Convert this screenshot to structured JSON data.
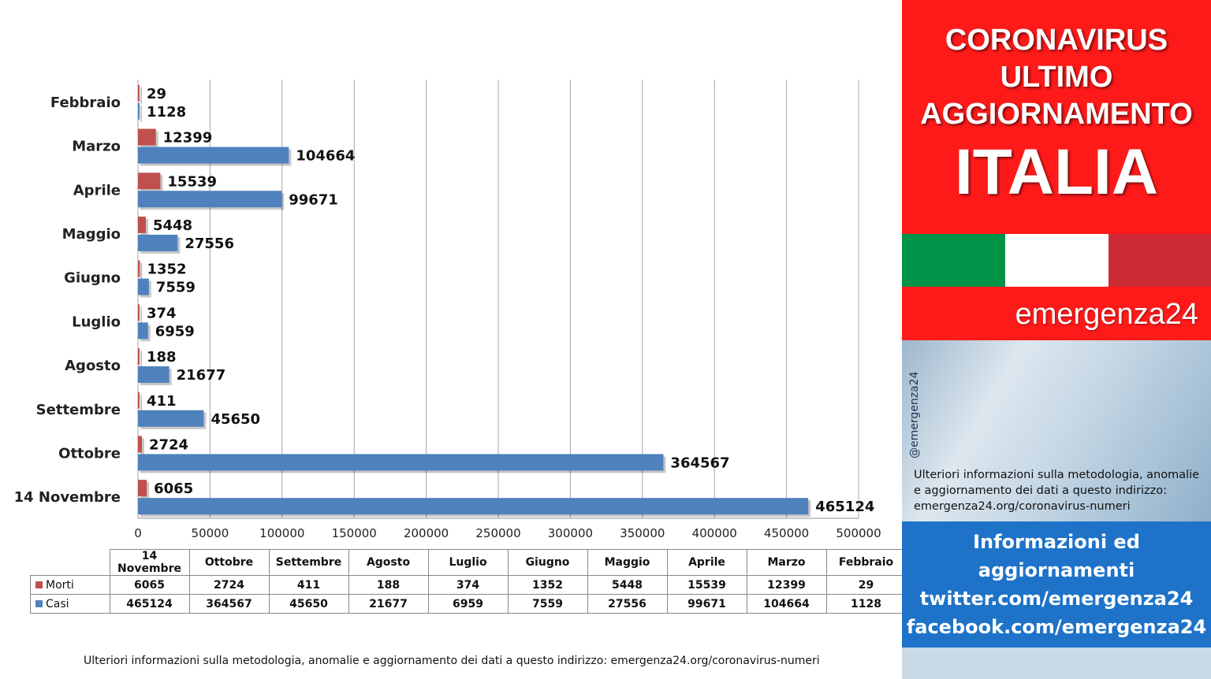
{
  "chart_data": {
    "type": "bar",
    "orientation": "horizontal",
    "categories": [
      "Febbraio",
      "Marzo",
      "Aprile",
      "Maggio",
      "Giugno",
      "Luglio",
      "Agosto",
      "Settembre",
      "Ottobre",
      "14 Novembre"
    ],
    "series": [
      {
        "name": "Morti",
        "color": "#c0504d",
        "values": [
          29,
          12399,
          15539,
          5448,
          1352,
          374,
          188,
          411,
          2724,
          6065
        ]
      },
      {
        "name": "Casi",
        "color": "#4f81bd",
        "values": [
          1128,
          104664,
          99671,
          27556,
          7559,
          6959,
          21677,
          45650,
          364567,
          465124
        ]
      }
    ],
    "xlim": [
      0,
      500000
    ],
    "xticks": [
      0,
      50000,
      100000,
      150000,
      200000,
      250000,
      300000,
      350000,
      400000,
      450000,
      500000
    ],
    "grid": true,
    "legend": "table-below"
  },
  "table": {
    "columns": [
      "14 Novembre",
      "Ottobre",
      "Settembre",
      "Agosto",
      "Luglio",
      "Giugno",
      "Maggio",
      "Aprile",
      "Marzo",
      "Febbraio"
    ],
    "rows": [
      {
        "name": "Morti",
        "color": "#c0504d",
        "values": [
          "6065",
          "2724",
          "411",
          "188",
          "374",
          "1352",
          "5448",
          "15539",
          "12399",
          "29"
        ]
      },
      {
        "name": "Casi",
        "color": "#4f81bd",
        "values": [
          "465124",
          "364567",
          "45650",
          "21677",
          "6959",
          "7559",
          "27556",
          "99671",
          "104664",
          "1128"
        ]
      }
    ]
  },
  "footer_note": "Ulteriori informazioni sulla metodologia, anomalie e aggiornamento dei dati a questo indirizzo: emergenza24.org/coronavirus-numeri",
  "panel": {
    "title_line1": "CORONAVIRUS",
    "title_line2": "ULTIMO",
    "title_line3": "AGGIORNAMENTO",
    "country": "ITALIA",
    "brand": "emergenza24",
    "handle": "@emergenza24",
    "note": "Ulteriori informazioni sulla metodologia, anomalie e aggiornamento dei dati a questo indirizzo: emergenza24.org/coronavirus-numeri",
    "info_line1": "Informazioni ed",
    "info_line2": "aggiornamenti",
    "info_line3": "twitter.com/emergenza24",
    "info_line4": "facebook.com/emergenza24",
    "flag_colors": [
      "#009246",
      "#ffffff",
      "#ce2b37"
    ]
  }
}
